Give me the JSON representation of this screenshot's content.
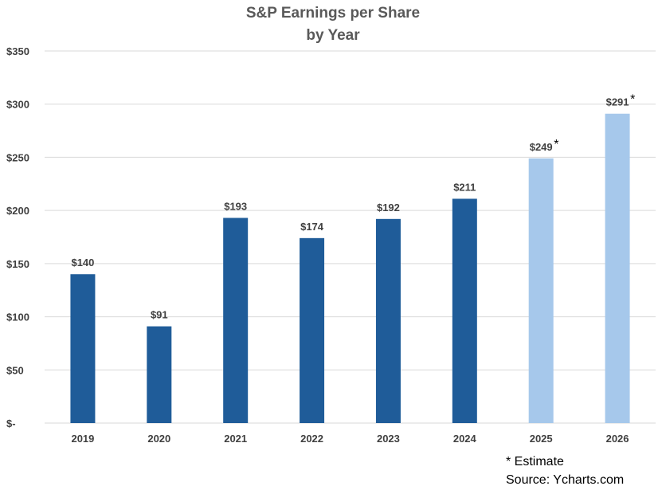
{
  "chart_data": {
    "type": "bar",
    "title_lines": [
      "S&P Earnings per Share",
      "by Year"
    ],
    "categories": [
      "2019",
      "2020",
      "2021",
      "2022",
      "2023",
      "2024",
      "2025",
      "2026"
    ],
    "values": [
      140,
      91,
      193,
      174,
      192,
      211,
      249,
      291
    ],
    "value_labels": [
      "$140",
      "$91",
      "$193",
      "$174",
      "$192",
      "$211",
      "$249",
      "$291"
    ],
    "estimate": [
      false,
      false,
      false,
      false,
      false,
      false,
      true,
      true
    ],
    "estimate_marker": "*",
    "ylim": [
      0,
      350
    ],
    "yticks": [
      0,
      50,
      100,
      150,
      200,
      250,
      300,
      350
    ],
    "ytick_labels": [
      "$-",
      "$50",
      "$100",
      "$150",
      "$200",
      "$250",
      "$300",
      "$350"
    ],
    "xlabel": "",
    "ylabel": "",
    "grid": true,
    "colors": {
      "actual": "#1f5c99",
      "estimate": "#a6c8eb"
    }
  },
  "footnotes": {
    "estimate": "* Estimate",
    "source": "Source: Ycharts.com"
  }
}
